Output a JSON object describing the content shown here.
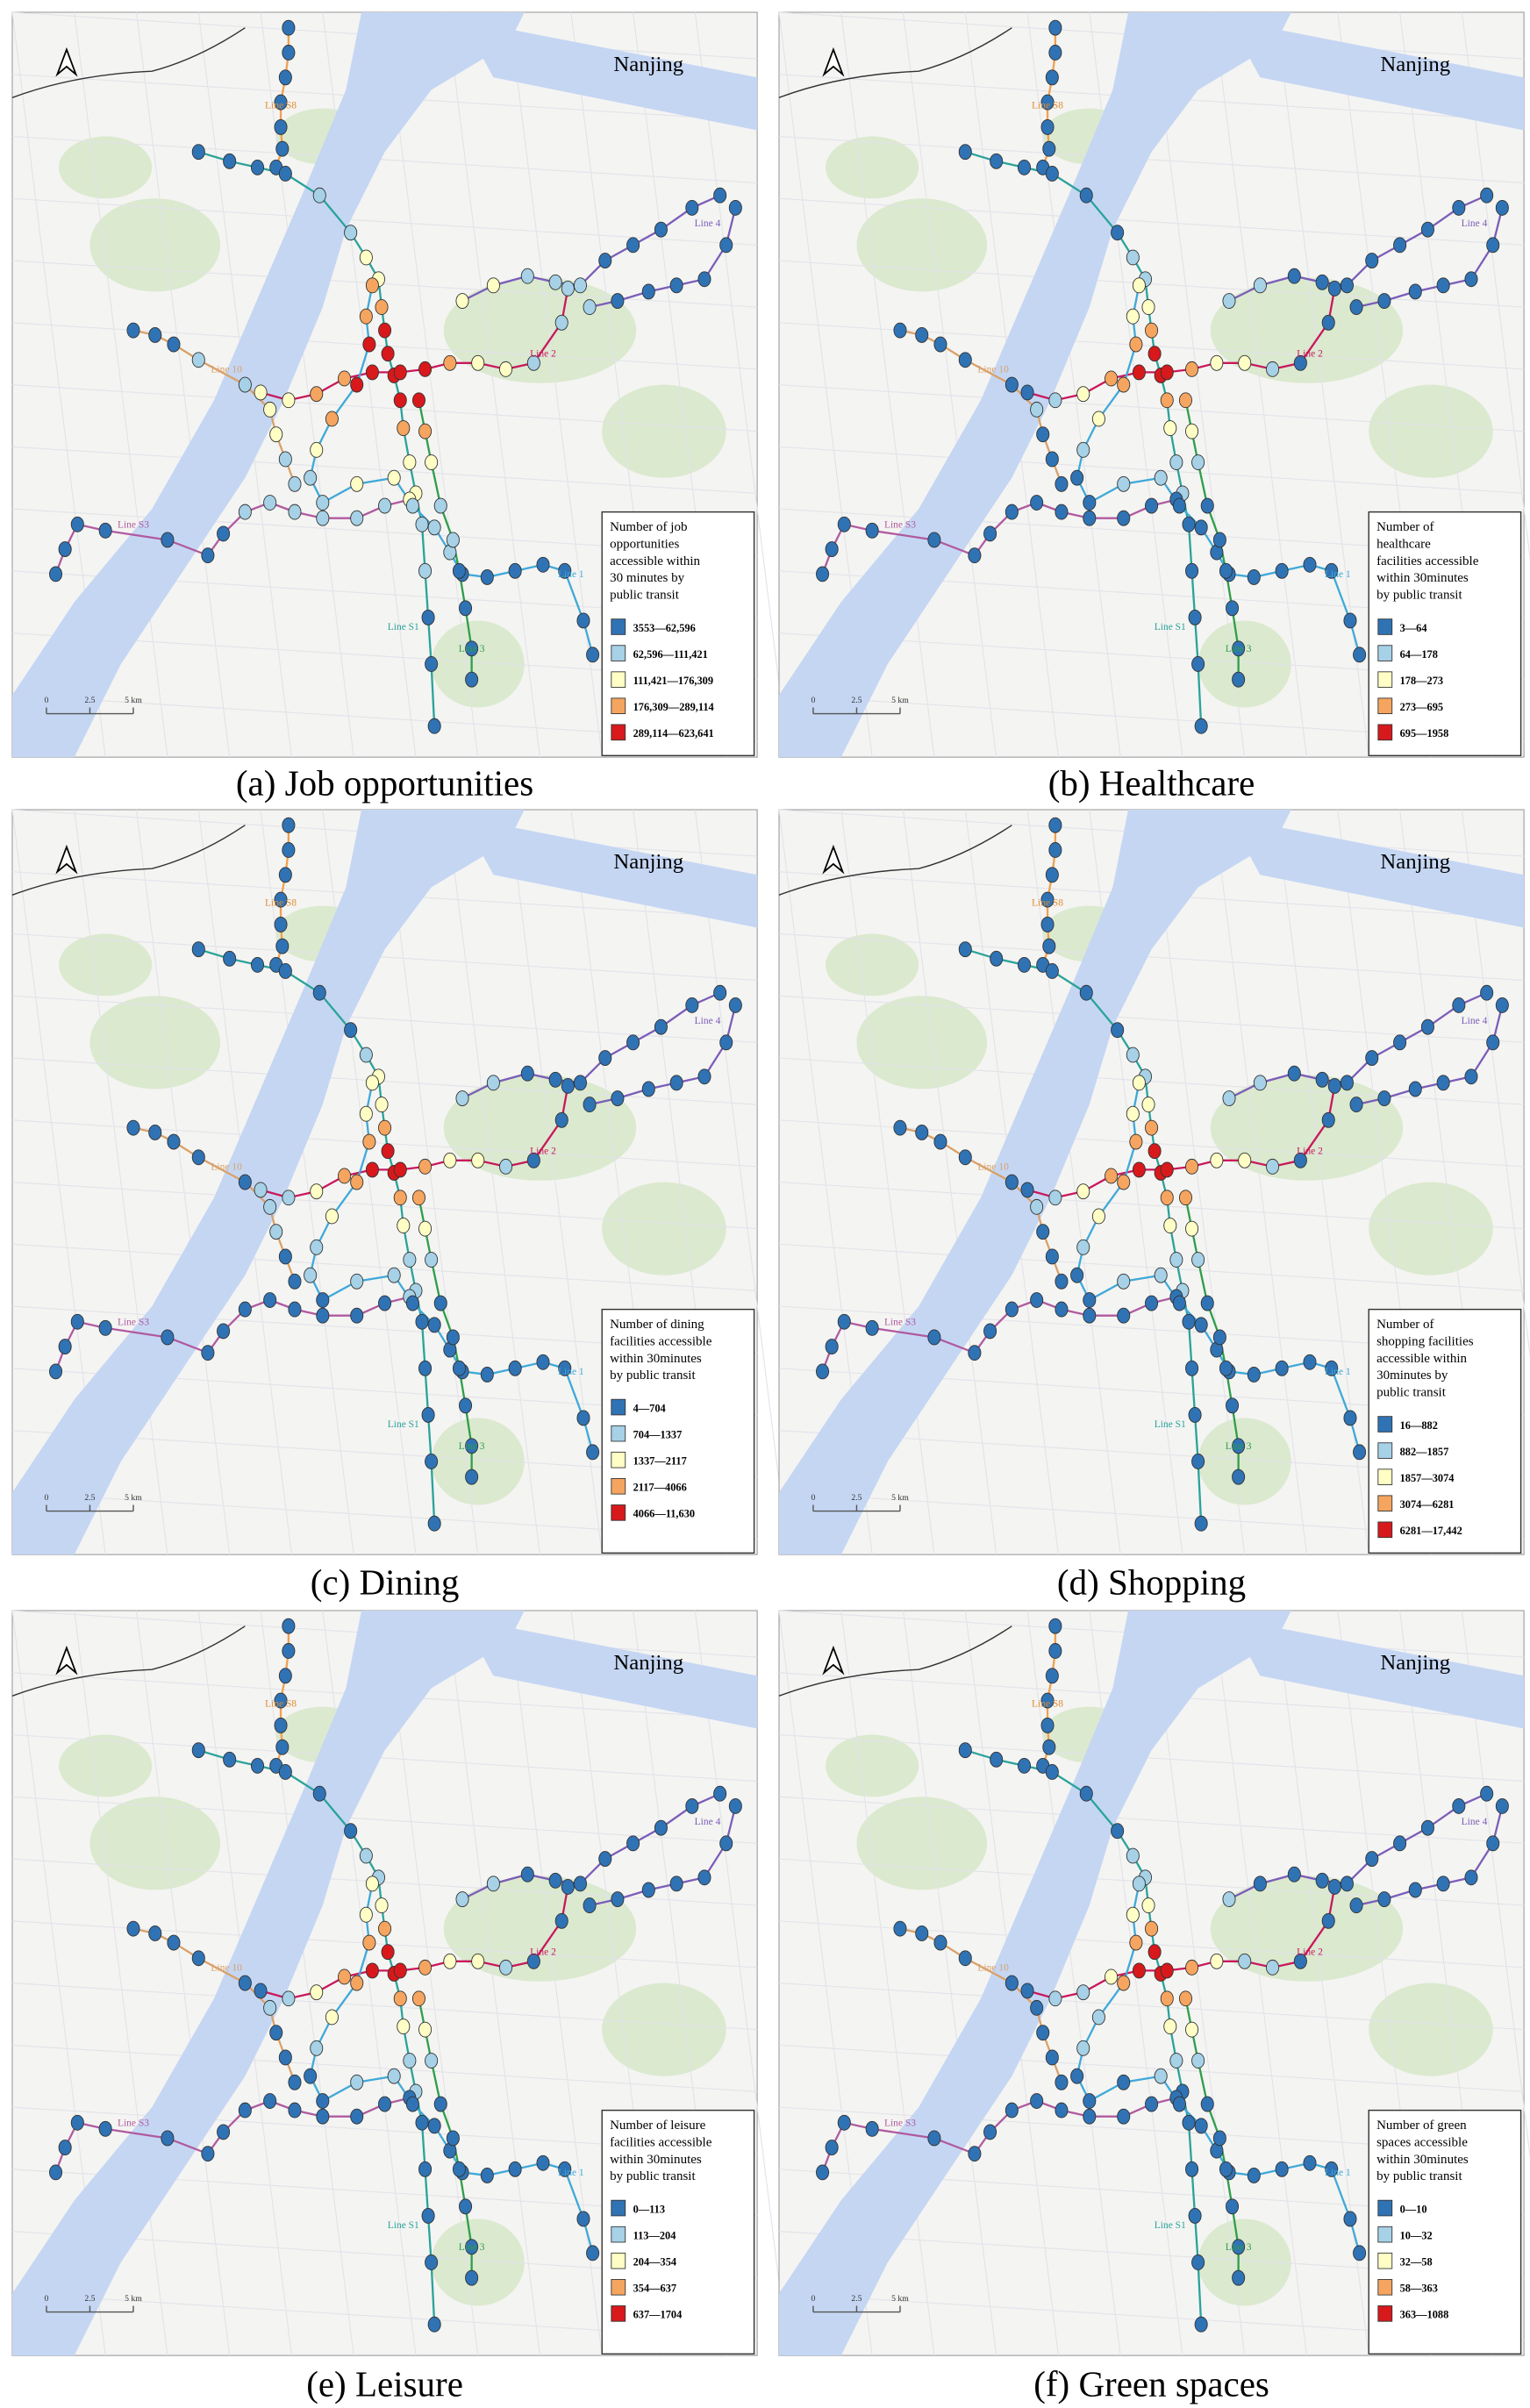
{
  "map_title": "Nanjing",
  "line_labels": [
    "Line S8",
    "Line 4",
    "Line 10",
    "Line 2",
    "Line S3",
    "Line 1",
    "Line S1",
    "Line 3"
  ],
  "scale_bar": [
    "0",
    "2.5",
    "5 km"
  ],
  "class_colors": [
    "#2f73b5",
    "#a6d1e6",
    "#ffffc5",
    "#f5a55f",
    "#d7191c"
  ],
  "panels": [
    {
      "caption": "(a) Job opportunities",
      "legend_title": [
        "Number of job",
        "opportunities",
        "accessible within",
        "30 minutes by",
        "public transit"
      ],
      "legend_items": [
        "3553—62,596",
        "62,596—111,421",
        "111,421—176,309",
        "176,309—289,114",
        "289,114—623,641"
      ]
    },
    {
      "caption": "(b) Healthcare",
      "legend_title": [
        "Number of",
        "healthcare",
        "facilities accessible",
        "within 30minutes",
        "by public transit"
      ],
      "legend_items": [
        "3—64",
        "64—178",
        "178—273",
        "273—695",
        "695—1958"
      ]
    },
    {
      "caption": "(c) Dining",
      "legend_title": [
        "Number of dining",
        "facilities accessible",
        "within 30minutes",
        "by public transit"
      ],
      "legend_items": [
        "4—704",
        "704—1337",
        "1337—2117",
        "2117—4066",
        "4066—11,630"
      ]
    },
    {
      "caption": "(d) Shopping",
      "legend_title": [
        "Number of",
        "shopping facilities",
        "accessible within",
        "30minutes by",
        "public transit"
      ],
      "legend_items": [
        "16—882",
        "882—1857",
        "1857—3074",
        "3074—6281",
        "6281—17,442"
      ]
    },
    {
      "caption": "(e) Leisure",
      "legend_title": [
        "Number of leisure",
        "facilities accessible",
        "within 30minutes",
        "by public transit"
      ],
      "legend_items": [
        "0—113",
        "113—204",
        "204—354",
        "354—637",
        "637—1704"
      ]
    },
    {
      "caption": "(f) Green spaces",
      "legend_title": [
        "Number of green",
        "spaces accessible",
        "within 30minutes",
        "by public transit"
      ],
      "legend_items": [
        "0—10",
        "10—32",
        "32—58",
        "58—363",
        "363—1088"
      ]
    }
  ]
}
